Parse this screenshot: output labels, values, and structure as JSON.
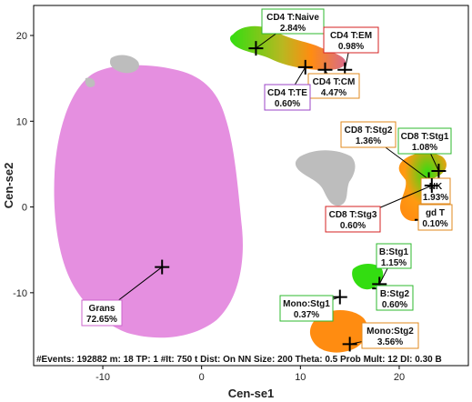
{
  "chart_data": {
    "type": "scatter",
    "xlabel": "Cen-se1",
    "ylabel": "Cen-se2",
    "xlim": [
      -17,
      27
    ],
    "ylim": [
      -18.5,
      23.5
    ],
    "x_ticks": [
      -10,
      0,
      10,
      20
    ],
    "y_ticks": [
      -10,
      0,
      10,
      20
    ],
    "grid": false,
    "status_text": "#Events: 192882 m: 18 TP: 1 #It: 750 t Dist: On NN Size: 200 Theta: 0.5 Prob Mult: 12 DI: 0.30 B",
    "colors": {
      "grans": "#e58fe0",
      "gray": "#bdbdbd",
      "green": "#33dd11",
      "orange": "#ff8c11",
      "pinkred": "#d86a8a"
    },
    "populations": [
      {
        "name": "CD4 T:Naive",
        "pct": "2.84%",
        "x": 5.5,
        "y": 18.5,
        "border": "#2eb82e"
      },
      {
        "name": "CD4 T:EM",
        "pct": "0.98%",
        "x": 14.5,
        "y": 16.0,
        "border": "#d62020"
      },
      {
        "name": "CD4 T:CM",
        "pct": "4.47%",
        "x": 12.5,
        "y": 16.0,
        "border": "#e08a1e"
      },
      {
        "name": "CD4 T:TE",
        "pct": "0.60%",
        "x": 10.5,
        "y": 16.3,
        "border": "#9b44c7"
      },
      {
        "name": "CD8 T:Stg2",
        "pct": "1.36%",
        "x": 23.0,
        "y": 3.2,
        "border": "#e08a1e"
      },
      {
        "name": "CD8 T:Stg1",
        "pct": "1.08%",
        "x": 24.0,
        "y": 4.2,
        "border": "#2eb82e"
      },
      {
        "name": "NK",
        "pct": "1.93%",
        "x": 23.0,
        "y": 0.8,
        "border": "#e08a1e"
      },
      {
        "name": "gd T",
        "pct": "0.10%",
        "x": 22.3,
        "y": -1.5,
        "border": "#e08a1e"
      },
      {
        "name": "CD8 T:Stg3",
        "pct": "0.60%",
        "x": 23.3,
        "y": 2.5,
        "border": "#d62020"
      },
      {
        "name": "B:Stg1",
        "pct": "1.15%",
        "x": 18.0,
        "y": -9.0,
        "border": "#2eb82e"
      },
      {
        "name": "B:Stg2",
        "pct": "0.60%",
        "x": 18.0,
        "y": -9.5,
        "border": "#2eb82e"
      },
      {
        "name": "Mono:Stg1",
        "pct": "0.37%",
        "x": 14.0,
        "y": -10.5,
        "border": "#2eb82e"
      },
      {
        "name": "Mono:Stg2",
        "pct": "3.56%",
        "x": 15.0,
        "y": -16.0,
        "border": "#e08a1e"
      },
      {
        "name": "Grans",
        "pct": "72.65%",
        "x": -4.0,
        "y": -7.0,
        "border": "#cc66cc"
      }
    ]
  }
}
